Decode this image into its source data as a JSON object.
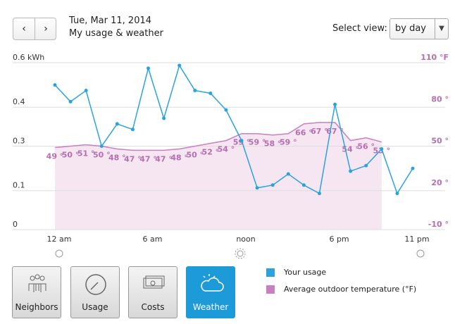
{
  "header": {
    "date": "Tue, Mar 11, 2014",
    "subtitle": "My usage & weather",
    "select_label": "Select view:",
    "select_value": "by day"
  },
  "chart_data": {
    "type": "line",
    "x": [
      0,
      1,
      2,
      3,
      4,
      5,
      6,
      7,
      8,
      9,
      10,
      11,
      12,
      13,
      14,
      15,
      16,
      17,
      18,
      19,
      20,
      21,
      22,
      23
    ],
    "xlim": [
      0,
      23
    ],
    "xticks": [
      {
        "value": 0,
        "label": "12 am"
      },
      {
        "value": 6,
        "label": "6 am"
      },
      {
        "value": 12,
        "label": "noon"
      },
      {
        "value": 18,
        "label": "6 pm"
      },
      {
        "value": 23,
        "label": "11 pm"
      }
    ],
    "ylim": [
      0,
      0.6
    ],
    "yticks": [
      {
        "value": 0.6,
        "label": "0.6 kWh"
      },
      {
        "value": 0.44,
        "label": "0.4"
      },
      0.3,
      {
        "value": 0.14,
        "label": "0.1"
      },
      0
    ],
    "y2lim": [
      -10,
      110
    ],
    "y2ticks": [
      {
        "value": 110,
        "label": "110 °F"
      },
      {
        "value": 80,
        "label": "80 °"
      },
      {
        "value": 50,
        "label": "50 °"
      },
      {
        "value": 20,
        "label": "20 °"
      },
      {
        "value": -10,
        "label": "-10 °"
      }
    ],
    "grid": true,
    "series": [
      {
        "name": "Your usage",
        "color": "#2aa3dd",
        "values": [
          0.52,
          0.46,
          0.5,
          0.3,
          0.38,
          0.36,
          0.58,
          0.4,
          0.59,
          0.5,
          0.49,
          0.43,
          0.32,
          0.15,
          0.16,
          0.2,
          0.16,
          0.13,
          0.45,
          0.21,
          0.23,
          0.29,
          0.13,
          0.22
        ]
      },
      {
        "name": "Average outdoor temperature (°F)",
        "color": "#c97fc2",
        "axis": "y2",
        "type": "area",
        "values": [
          49,
          50,
          51,
          50,
          48,
          47,
          47,
          47,
          48,
          50,
          52,
          54,
          59,
          59,
          58,
          59,
          66,
          67,
          67,
          54,
          56,
          53,
          null,
          null
        ],
        "value_labels": [
          "49 °",
          "50 °",
          "51 °",
          "50 °",
          "48 °",
          "47 °",
          "47 °",
          "47 °",
          "48 °",
          "50 °",
          "52 °",
          "54 °",
          "59 °",
          "59 °",
          "58 °",
          "59 °",
          "66 °",
          "67 °",
          "67 °",
          "54 °",
          "56 °",
          "53 °",
          null,
          null
        ]
      }
    ]
  },
  "buttons": [
    "Neighbors",
    "Usage",
    "Costs",
    "Weather"
  ]
}
